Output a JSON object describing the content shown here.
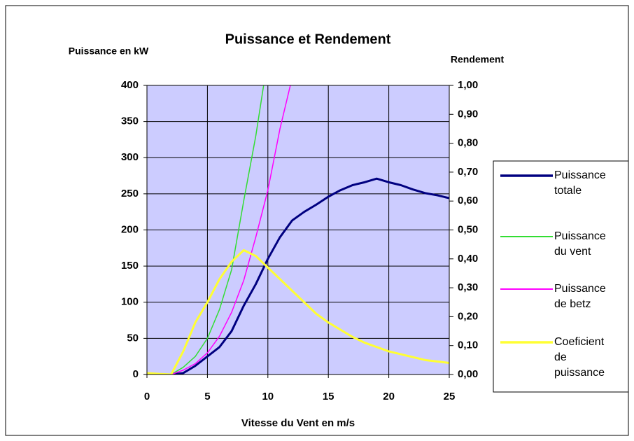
{
  "chart_data": {
    "type": "line",
    "title": "Puissance et Rendement",
    "y_label": "Puissance en kW",
    "y2_label": "Rendement",
    "x_label": "Vitesse du Vent en m/s",
    "x": [
      0,
      1,
      2,
      3,
      4,
      5,
      6,
      7,
      8,
      9,
      10,
      11,
      12,
      13,
      14,
      15,
      16,
      17,
      18,
      19,
      20,
      21,
      22,
      23,
      24,
      25
    ],
    "series": [
      {
        "name": "Puissance totale",
        "color": "#000080",
        "width": 3,
        "values": [
          0,
          0,
          0,
          2,
          12,
          25,
          38,
          60,
          95,
          125,
          160,
          190,
          213,
          225,
          235,
          246,
          255,
          262,
          266,
          271,
          266,
          262,
          256,
          251,
          248,
          244
        ]
      },
      {
        "name": "Puissance du vent",
        "color": "#33dd33",
        "width": 1.5,
        "values": [
          0,
          0,
          0,
          10,
          25,
          50,
          90,
          145,
          240,
          330,
          438,
          null,
          null,
          null,
          null,
          null,
          null,
          null,
          null,
          null,
          null,
          null,
          null,
          null,
          null,
          null
        ]
      },
      {
        "name": "Puissance de betz",
        "color": "#ff00ff",
        "width": 1.5,
        "values": [
          0,
          0,
          0,
          6,
          15,
          30,
          53,
          86,
          130,
          190,
          255,
          340,
          410,
          null,
          null,
          null,
          null,
          null,
          null,
          null,
          null,
          null,
          null,
          null,
          null,
          null
        ]
      },
      {
        "name": "Coeficient de puissance",
        "color": "#ffff33",
        "width": 3,
        "axis": "y2",
        "values": [
          0.005,
          0.002,
          0,
          0.08,
          0.18,
          0.25,
          0.33,
          0.39,
          0.43,
          0.41,
          0.37,
          0.33,
          0.29,
          0.25,
          0.21,
          0.18,
          0.155,
          0.13,
          0.11,
          0.095,
          0.08,
          0.07,
          0.06,
          0.05,
          0.045,
          0.04
        ]
      }
    ],
    "xlim": [
      0,
      25
    ],
    "xticks": [
      0,
      5,
      10,
      15,
      20,
      25
    ],
    "ylim": [
      0,
      400
    ],
    "yticks": [
      0,
      50,
      100,
      150,
      200,
      250,
      300,
      350,
      400
    ],
    "y2lim": [
      0,
      1
    ],
    "y2ticks": [
      {
        "value": 0,
        "label": "0,00"
      },
      {
        "value": 0.1,
        "label": "0,10"
      },
      {
        "value": 0.2,
        "label": "0,20"
      },
      {
        "value": 0.3,
        "label": "0,30"
      },
      {
        "value": 0.4,
        "label": "0,40"
      },
      {
        "value": 0.5,
        "label": "0,50"
      },
      {
        "value": 0.6,
        "label": "0,60"
      },
      {
        "value": 0.7,
        "label": "0,70"
      },
      {
        "value": 0.8,
        "label": "0,80"
      },
      {
        "value": 0.9,
        "label": "0,90"
      },
      {
        "value": 1,
        "label": "1,00"
      }
    ],
    "grid": true,
    "plot_background": "#ccccff",
    "legend": "right"
  }
}
